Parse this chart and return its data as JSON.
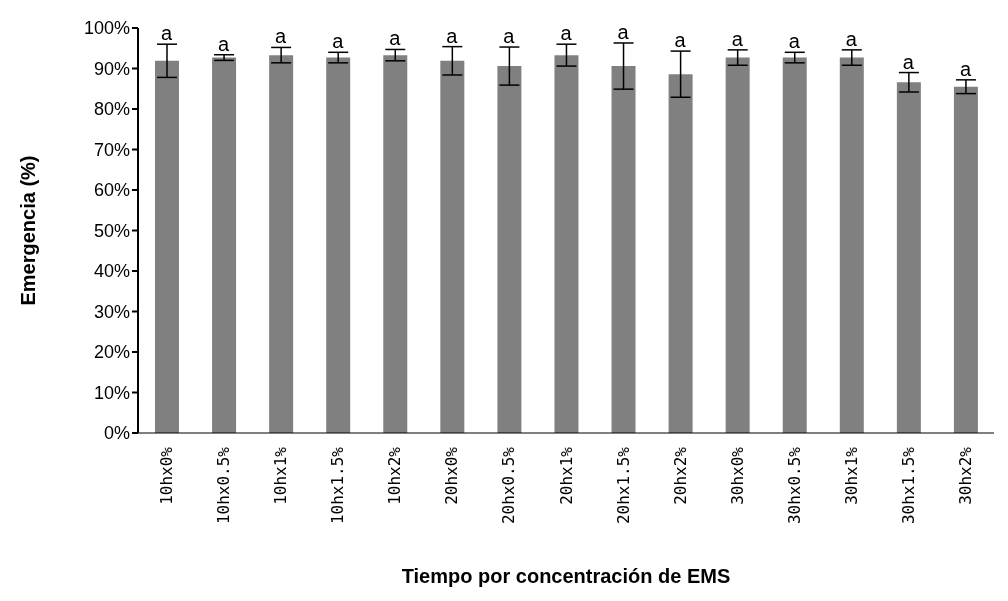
{
  "chart_data": {
    "type": "bar",
    "xlabel": "Tiempo por concentración de EMS",
    "ylabel": "Emergencia (%)",
    "categories": [
      "10hx0%",
      "10hx0.5%",
      "10hx1%",
      "10hx1.5%",
      "10hx2%",
      "20hx0%",
      "20hx0.5%",
      "20hx1%",
      "20hx1.5%",
      "20hx2%",
      "30hx0%",
      "30hx0.5%",
      "30hx1%",
      "30hx1.5%",
      "30hx2%"
    ],
    "values": [
      91.9,
      92.7,
      93.3,
      92.7,
      93.3,
      91.9,
      90.6,
      93.3,
      90.6,
      88.6,
      92.7,
      92.7,
      92.7,
      86.6,
      85.5
    ],
    "errors": [
      4.1,
      0.7,
      1.9,
      1.3,
      1.4,
      3.5,
      4.7,
      2.7,
      5.7,
      5.7,
      1.9,
      1.3,
      1.9,
      2.4,
      1.7
    ],
    "color": "#808080",
    "ylim": [
      0,
      100
    ],
    "yticks": [
      {
        "value": 0,
        "label": "0%"
      },
      {
        "value": 10,
        "label": "10%"
      },
      {
        "value": 20,
        "label": "20%"
      },
      {
        "value": 30,
        "label": "30%"
      },
      {
        "value": 40,
        "label": "40%"
      },
      {
        "value": 50,
        "label": "50%"
      },
      {
        "value": 60,
        "label": "60%"
      },
      {
        "value": 70,
        "label": "70%"
      },
      {
        "value": 80,
        "label": "80%"
      },
      {
        "value": 90,
        "label": "90%"
      },
      {
        "value": 100,
        "label": "100%"
      }
    ],
    "annotations": [
      {
        "text": "a",
        "x": "10hx0%",
        "y": 96.0
      },
      {
        "text": "a",
        "x": "10hx0.5%",
        "y": 93.4
      },
      {
        "text": "a",
        "x": "10hx1%",
        "y": 95.2
      },
      {
        "text": "a",
        "x": "10hx1.5%",
        "y": 94.0
      },
      {
        "text": "a",
        "x": "10hx2%",
        "y": 94.7
      },
      {
        "text": "a",
        "x": "20hx0%",
        "y": 95.4
      },
      {
        "text": "a",
        "x": "20hx0.5%",
        "y": 95.3
      },
      {
        "text": "a",
        "x": "20hx1%",
        "y": 96.0
      },
      {
        "text": "a",
        "x": "20hx1.5%",
        "y": 96.3
      },
      {
        "text": "a",
        "x": "20hx2%",
        "y": 94.3
      },
      {
        "text": "a",
        "x": "30hx0%",
        "y": 94.6
      },
      {
        "text": "a",
        "x": "30hx0.5%",
        "y": 94.0
      },
      {
        "text": "a",
        "x": "30hx1%",
        "y": 94.6
      },
      {
        "text": "a",
        "x": "30hx1.5%",
        "y": 89.0
      },
      {
        "text": "a",
        "x": "30hx2%",
        "y": 87.2
      }
    ],
    "grid": false,
    "legend": false
  }
}
